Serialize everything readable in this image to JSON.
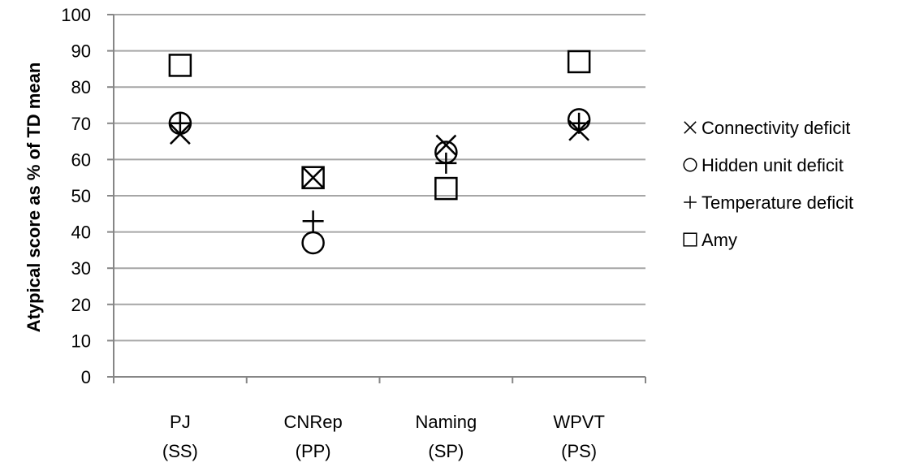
{
  "chart_data": {
    "type": "scatter",
    "title": "",
    "xlabel": "",
    "ylabel": "Atypical score as % of TD mean",
    "ylim": [
      0,
      100
    ],
    "yticks": [
      0,
      10,
      20,
      30,
      40,
      50,
      60,
      70,
      80,
      90,
      100
    ],
    "grid": "horizontal",
    "legend_position": "right",
    "categories": [
      [
        "PJ",
        "(SS)"
      ],
      [
        "CNRep",
        "(PP)"
      ],
      [
        "Naming",
        "(SP)"
      ],
      [
        "WPVT",
        "(PS)"
      ]
    ],
    "series": [
      {
        "name": "Connectivity deficit",
        "marker": "x-mark",
        "values": [
          67,
          55,
          64,
          68
        ]
      },
      {
        "name": "Hidden unit deficit",
        "marker": "circle",
        "values": [
          70,
          37,
          62,
          71
        ]
      },
      {
        "name": "Temperature deficit",
        "marker": "plus",
        "values": [
          70,
          43,
          59,
          70
        ]
      },
      {
        "name": "Amy",
        "marker": "square",
        "values": [
          86,
          55,
          52,
          87
        ]
      }
    ],
    "colors": {
      "marker": "#000000",
      "grid": "#a6a6a6",
      "axis": "#868686"
    }
  }
}
